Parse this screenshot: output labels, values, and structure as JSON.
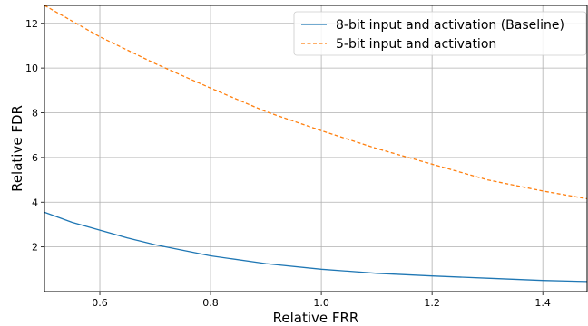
{
  "chart_data": {
    "type": "line",
    "xlabel": "Relative FRR",
    "ylabel": "Relative FDR",
    "xlim": [
      0.5,
      1.48
    ],
    "ylim": [
      0,
      12.8
    ],
    "xticks": [
      "0.6",
      "0.8",
      "1.0",
      "1.2",
      "1.4"
    ],
    "yticks": [
      "2",
      "4",
      "6",
      "8",
      "10",
      "12"
    ],
    "grid": true,
    "legend_position": "top-right",
    "series": [
      {
        "name": "8-bit input and activation (Baseline)",
        "style": "solid",
        "color": "#1f77b4",
        "x": [
          0.5,
          0.55,
          0.6,
          0.65,
          0.7,
          0.8,
          0.9,
          1.0,
          1.1,
          1.2,
          1.3,
          1.4,
          1.48
        ],
        "y": [
          3.55,
          3.1,
          2.75,
          2.4,
          2.1,
          1.6,
          1.25,
          1.0,
          0.82,
          0.7,
          0.6,
          0.5,
          0.45
        ]
      },
      {
        "name": "5-bit input and activation",
        "style": "dashed",
        "color": "#ff7f0e",
        "x": [
          0.5,
          0.6,
          0.7,
          0.8,
          0.9,
          1.0,
          1.1,
          1.2,
          1.3,
          1.4,
          1.48
        ],
        "y": [
          12.8,
          11.4,
          10.2,
          9.1,
          8.05,
          7.2,
          6.4,
          5.7,
          5.0,
          4.5,
          4.15
        ]
      }
    ]
  }
}
